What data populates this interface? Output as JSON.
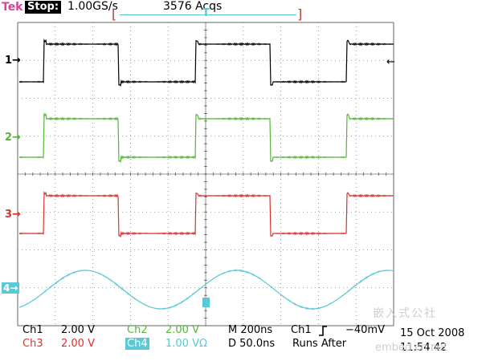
{
  "header": {
    "brand": "Tek",
    "state": "Stop:",
    "sample_rate": "1.00GS/s",
    "acquisitions": "3576 Acqs",
    "bracket_left": "[",
    "bracket_right": "]",
    "trigger_marker": "T"
  },
  "channels": {
    "ch1": {
      "marker": "1→",
      "color": "#000000"
    },
    "ch2": {
      "marker": "2→",
      "color": "#57b53c"
    },
    "ch3": {
      "marker": "3→",
      "color": "#d6332e"
    },
    "ch4": {
      "marker": "4→",
      "color": "#5bc8d6"
    }
  },
  "trigger_level_marker": "←",
  "status": {
    "ch1_name": "Ch1",
    "ch1_scale": "2.00 V",
    "ch2_name": "Ch2",
    "ch2_scale": "2.00 V",
    "ch3_name": "Ch3",
    "ch3_scale": "2.00 V",
    "ch4_name": "Ch4",
    "ch4_scale": "1.00 VΩ",
    "timebase": "M  200ns",
    "delay": "D  50.0ns",
    "trigger_source": "Ch1",
    "trigger_slope_icon": "rising-edge-icon",
    "trigger_level": "−40mV",
    "date": "15 Oct 2008",
    "time": "11:54:42",
    "mode": "Runs After"
  },
  "watermark": {
    "line1": "嵌入式公社",
    "line2": "embed.cn.net"
  }
}
